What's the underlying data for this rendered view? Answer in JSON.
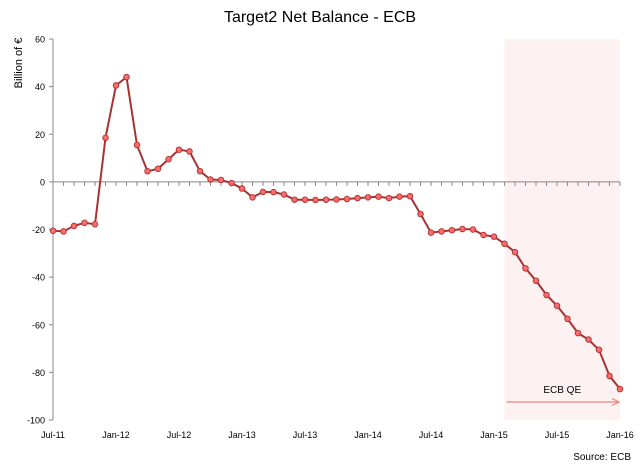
{
  "chart_data": {
    "type": "line",
    "title": "Target2 Net Balance - ECB",
    "ylabel": "Billion of €",
    "xlabel": "",
    "ylim": [
      -100,
      60
    ],
    "yticks": [
      60,
      40,
      20,
      0,
      -20,
      -40,
      -60,
      -80,
      -100
    ],
    "xtick_labels": [
      "Jul-11",
      "Jan-12",
      "Jul-12",
      "Jan-13",
      "Jul-13",
      "Jan-14",
      "Jul-14",
      "Jan-15",
      "Jul-15",
      "Jan-16"
    ],
    "grid": false,
    "legend": "none",
    "series": [
      {
        "color": "#a83232",
        "marker_fill": "#ff6b6b",
        "values": [
          -20.5,
          -20.8,
          -18.5,
          -17.2,
          -17.8,
          18.5,
          40.5,
          44,
          15.5,
          4.5,
          5.5,
          9.5,
          13.5,
          12.8,
          4.5,
          1,
          0.8,
          -0.5,
          -2.8,
          -6.5,
          -4.2,
          -4.3,
          -5.3,
          -7.5,
          -7.5,
          -7.6,
          -7.5,
          -7.4,
          -7.2,
          -6.8,
          -6.5,
          -6.2,
          -6.8,
          -6.2,
          -6,
          -13.5,
          -21.3,
          -20.8,
          -20.3,
          -19.8,
          -20,
          -22.3,
          -23,
          -26,
          -29.5,
          -36.3,
          -41.5,
          -47.5,
          -52,
          -57.5,
          -63.5,
          -66.2,
          -70.5,
          -81.5,
          -87
        ]
      }
    ],
    "shaded_region": {
      "label": "ECB QE",
      "x_start": 43,
      "x_end": 54
    },
    "source": "Source: ECB"
  }
}
